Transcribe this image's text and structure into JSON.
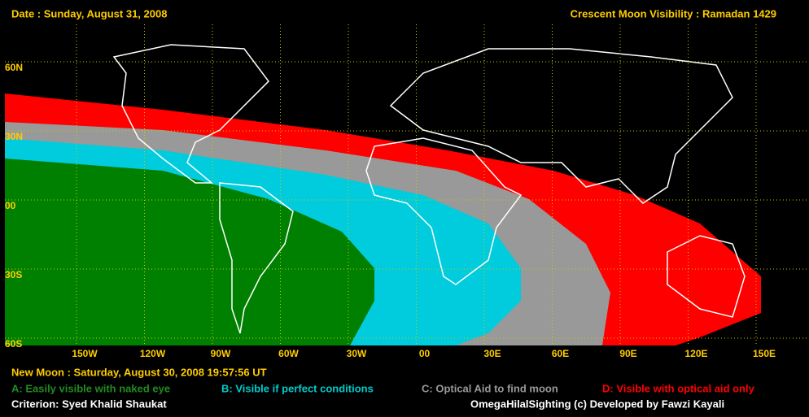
{
  "header": {
    "date": "Date : Sunday, August 31, 2008",
    "title": "Crescent Moon Visibility : Ramadan  1429"
  },
  "grid": {
    "latitudes": [
      "60N",
      "30N",
      "00",
      "30S",
      "60S"
    ],
    "longitudes": [
      "150W",
      "120W",
      "90W",
      "60W",
      "30W",
      "00",
      "30E",
      "60E",
      "90E",
      "120E",
      "150E"
    ]
  },
  "footer": {
    "new_moon": "New Moon : Saturday, August 30, 2008  19:57:56  UT",
    "legend": [
      "A: Easily visible with naked eye",
      "B: Visible if perfect conditions",
      "C: Optical Aid to find moon",
      "D: Visible with optical aid only"
    ],
    "criterion": "Criterion: Syed Khalid Shaukat",
    "credit": "OmegaHilalSighting  (c)  Developed by Fawzi Kayali"
  }
}
